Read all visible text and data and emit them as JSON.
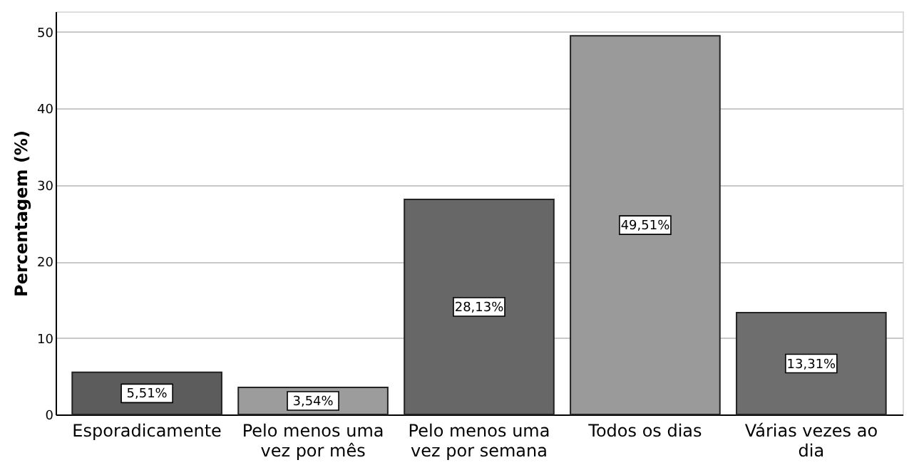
{
  "chart_data": {
    "type": "bar",
    "ylabel": "Percentagem (%)",
    "categories": [
      "Esporadicamente",
      "Pelo menos uma vez por mês",
      "Pelo menos uma vez por semana",
      "Todos os dias",
      "Várias vezes ao dia"
    ],
    "values": [
      5.51,
      3.54,
      28.13,
      49.51,
      13.31
    ],
    "colors": [
      "#5c5c5c",
      "#9c9c9c",
      "#676767",
      "#9a9a9a",
      "#6e6e6e"
    ],
    "value_labels": [
      "5,51%",
      "3,54%",
      "28,13%",
      "49,51%",
      "13,31%"
    ],
    "ylim": [
      0,
      52.7
    ],
    "yticks": [
      0,
      10,
      20,
      30,
      40,
      50
    ],
    "grid": "y"
  }
}
